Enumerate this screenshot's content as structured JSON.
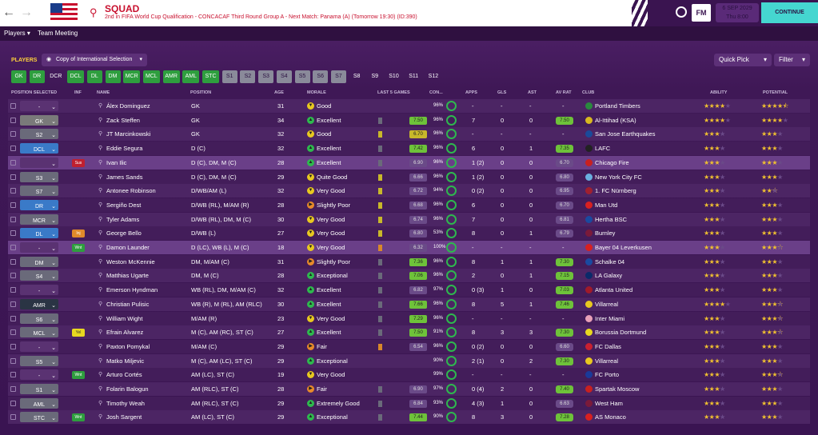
{
  "header": {
    "title": "SQUAD",
    "subtitle": "2nd in FIFA World Cup Qualification - CONCACAF Third Round Group A - Next Match: Panama (A) (Tomorrow 19:30) (ID:390)",
    "fm_label": "FM",
    "date": "6 SEP 2029",
    "time": "Thu 8:00",
    "continue": "CONTINUE"
  },
  "subnav": {
    "players": "Players",
    "team_meeting": "Team Meeting"
  },
  "toolbar": {
    "players_label": "PLAYERS",
    "view": "Copy of International Selection",
    "quick_pick": "Quick Pick",
    "filter": "Filter"
  },
  "position_tabs": [
    {
      "label": "GK",
      "style": "green"
    },
    {
      "label": "DR",
      "style": "green"
    },
    {
      "label": "DCR",
      "style": "plain"
    },
    {
      "label": "DCL",
      "style": "green"
    },
    {
      "label": "DL",
      "style": "green"
    },
    {
      "label": "DM",
      "style": "green"
    },
    {
      "label": "MCR",
      "style": "green"
    },
    {
      "label": "MCL",
      "style": "green"
    },
    {
      "label": "AMR",
      "style": "green"
    },
    {
      "label": "AML",
      "style": "green"
    },
    {
      "label": "STC",
      "style": "green"
    },
    {
      "label": "S1",
      "style": "grey"
    },
    {
      "label": "S2",
      "style": "grey"
    },
    {
      "label": "S3",
      "style": "grey"
    },
    {
      "label": "S4",
      "style": "grey"
    },
    {
      "label": "S5",
      "style": "grey"
    },
    {
      "label": "S6",
      "style": "grey"
    },
    {
      "label": "S7",
      "style": "grey"
    },
    {
      "label": "S8",
      "style": "plain"
    },
    {
      "label": "S9",
      "style": "plain"
    },
    {
      "label": "S10",
      "style": "plain"
    },
    {
      "label": "S11",
      "style": "plain"
    },
    {
      "label": "S12",
      "style": "plain"
    }
  ],
  "columns": {
    "position_selected": "POSITION SELECTED",
    "inf": "INF",
    "name": "NAME",
    "position": "POSITION",
    "age": "AGE",
    "morale": "MORALE",
    "last5": "LAST 5 GAMES",
    "con": "CON...",
    "apps": "APPS",
    "gls": "GLS",
    "ast": "AST",
    "avrat": "AV RAT",
    "club": "CLUB",
    "ability": "ABILITY",
    "potential": "POTENTIAL"
  },
  "players": [
    {
      "sel": "-",
      "selstyle": "empty",
      "inf": "",
      "name": "Álex Dominguez",
      "pos": "GK",
      "age": "31",
      "morale": "Good",
      "mstyle": "good",
      "games": [],
      "rating": "",
      "con": "96%",
      "apps": "-",
      "gls": "-",
      "ast": "-",
      "avrat": "-",
      "avstyle": "",
      "club": "Portland Timbers",
      "clubcolor": "#2a8a3e",
      "ability": 4,
      "potential": 4.5
    },
    {
      "sel": "GK",
      "selstyle": "gk",
      "inf": "",
      "name": "Zack Steffen",
      "pos": "GK",
      "age": "34",
      "morale": "Excellent",
      "mstyle": "exc",
      "games": [
        "g",
        "g",
        "g",
        "g",
        "g"
      ],
      "rating": "7.50",
      "rstyle": "g",
      "con": "96%",
      "apps": "7",
      "gls": "0",
      "ast": "0",
      "avrat": "7.50",
      "avstyle": "g",
      "club": "Al-Ittihad (KSA)",
      "clubcolor": "#d8b820",
      "ability": 4,
      "potential": 4
    },
    {
      "sel": "S2",
      "selstyle": "grey",
      "inf": "",
      "name": "JT Marcinkowski",
      "pos": "GK",
      "age": "32",
      "morale": "Good",
      "mstyle": "good",
      "games": [
        "y"
      ],
      "rating": "6.70",
      "rstyle": "y",
      "con": "96%",
      "apps": "-",
      "gls": "-",
      "ast": "-",
      "avrat": "-",
      "avstyle": "",
      "club": "San Jose Earthquakes",
      "clubcolor": "#1a4a9a",
      "ability": 3,
      "potential": 3
    },
    {
      "sel": "DCL",
      "selstyle": "blue",
      "inf": "",
      "name": "Eddie Segura",
      "pos": "D (C)",
      "age": "32",
      "morale": "Excellent",
      "mstyle": "exc",
      "games": [
        "g",
        "g",
        "g",
        "g",
        "g"
      ],
      "rating": "7.42",
      "rstyle": "g",
      "con": "96%",
      "apps": "6",
      "gls": "0",
      "ast": "1",
      "avrat": "7.35",
      "avstyle": "g",
      "club": "LAFC",
      "clubcolor": "#222",
      "ability": 3,
      "potential": 3
    },
    {
      "sel": "",
      "selstyle": "empty",
      "inf": "Sus",
      "infstyle": "sus",
      "name": "Ivan Ilic",
      "pos": "D (C), DM, M (C)",
      "age": "28",
      "morale": "Excellent",
      "mstyle": "exc",
      "games": [
        "g",
        "g",
        "g",
        "g",
        "g"
      ],
      "rating": "6.90",
      "rstyle": "p",
      "con": "96%",
      "apps": "1 (2)",
      "gls": "0",
      "ast": "0",
      "avrat": "6.70",
      "avstyle": "p",
      "club": "Chicago Fire",
      "clubcolor": "#c82020",
      "ability": 3,
      "potential": 3,
      "selected": true
    },
    {
      "sel": "S3",
      "selstyle": "grey",
      "inf": "",
      "name": "James Sands",
      "pos": "D (C), DM, M (C)",
      "age": "29",
      "morale": "Quite Good",
      "mstyle": "good",
      "games": [
        "y",
        "y",
        "y",
        "y",
        "y"
      ],
      "rating": "6.66",
      "rstyle": "p",
      "con": "96%",
      "apps": "1 (2)",
      "gls": "0",
      "ast": "0",
      "avrat": "6.80",
      "avstyle": "p",
      "club": "New York City FC",
      "clubcolor": "#6ab0e0",
      "ability": 3,
      "potential": 3
    },
    {
      "sel": "S7",
      "selstyle": "grey",
      "inf": "",
      "name": "Antonee Robinson",
      "pos": "D/WB/AM (L)",
      "age": "32",
      "morale": "Very Good",
      "mstyle": "good",
      "games": [
        "y",
        "y",
        "y",
        "y",
        "y"
      ],
      "rating": "6.72",
      "rstyle": "p",
      "con": "94%",
      "apps": "0 (2)",
      "gls": "0",
      "ast": "0",
      "avrat": "6.95",
      "avstyle": "p",
      "club": "1. FC Nürnberg",
      "clubcolor": "#a02030",
      "ability": 3,
      "potential": 2.5
    },
    {
      "sel": "DR",
      "selstyle": "blue",
      "inf": "",
      "name": "Sergiño Dest",
      "pos": "D/WB (RL), M/AM (R)",
      "age": "28",
      "morale": "Slightly Poor",
      "mstyle": "poor",
      "games": [
        "y",
        "y",
        "y",
        "y",
        "y"
      ],
      "rating": "6.68",
      "rstyle": "p",
      "con": "96%",
      "apps": "6",
      "gls": "0",
      "ast": "0",
      "avrat": "6.70",
      "avstyle": "p",
      "club": "Man Utd",
      "clubcolor": "#d82020",
      "ability": 3,
      "potential": 3
    },
    {
      "sel": "MCR",
      "selstyle": "grey",
      "inf": "",
      "name": "Tyler Adams",
      "pos": "D/WB (RL), DM, M (C)",
      "age": "30",
      "morale": "Very Good",
      "mstyle": "good",
      "games": [
        "y",
        "y",
        "y",
        "y",
        "y"
      ],
      "rating": "6.74",
      "rstyle": "p",
      "con": "96%",
      "apps": "7",
      "gls": "0",
      "ast": "0",
      "avrat": "6.81",
      "avstyle": "p",
      "club": "Hertha BSC",
      "clubcolor": "#1a4aa0",
      "ability": 3,
      "potential": 3
    },
    {
      "sel": "DL",
      "selstyle": "blue",
      "inf": "Inj",
      "infstyle": "inj",
      "name": "George Bello",
      "pos": "D/WB (L)",
      "age": "27",
      "morale": "Very Good",
      "mstyle": "good",
      "games": [
        "y",
        "y",
        "y",
        "y",
        "y"
      ],
      "rating": "6.80",
      "rstyle": "p",
      "con": "53%",
      "apps": "8",
      "gls": "0",
      "ast": "1",
      "avrat": "6.79",
      "avstyle": "p",
      "club": "Burnley",
      "clubcolor": "#7a1a3a",
      "ability": 3,
      "potential": 3
    },
    {
      "sel": "-",
      "selstyle": "empty",
      "inf": "Wnt",
      "infstyle": "wnt",
      "name": "Damon Launder",
      "pos": "D (LC), WB (L), M (C)",
      "age": "18",
      "morale": "Very Good",
      "mstyle": "good",
      "games": [
        "o"
      ],
      "rating": "6.32",
      "rstyle": "p",
      "con": "100%",
      "apps": "-",
      "gls": "-",
      "ast": "-",
      "avrat": "-",
      "avstyle": "",
      "club": "Bayer 04 Leverkusen",
      "clubcolor": "#d82020",
      "ability": 3,
      "potential": 3.5,
      "selected": true
    },
    {
      "sel": "DM",
      "selstyle": "grey",
      "inf": "",
      "name": "Weston McKennie",
      "pos": "DM, M/AM (C)",
      "age": "31",
      "morale": "Slightly Poor",
      "mstyle": "poor",
      "games": [
        "g",
        "g",
        "g",
        "g",
        "g"
      ],
      "rating": "7.36",
      "rstyle": "g",
      "con": "96%",
      "apps": "8",
      "gls": "1",
      "ast": "1",
      "avrat": "7.30",
      "avstyle": "g",
      "club": "Schalke 04",
      "clubcolor": "#1a4aa0",
      "ability": 3,
      "potential": 3
    },
    {
      "sel": "S4",
      "selstyle": "grey",
      "inf": "",
      "name": "Matthias Ugarte",
      "pos": "DM, M (C)",
      "age": "28",
      "morale": "Exceptional",
      "mstyle": "exc",
      "games": [
        "g",
        "g",
        "g",
        "g",
        "g"
      ],
      "rating": "7.06",
      "rstyle": "g",
      "con": "96%",
      "apps": "2",
      "gls": "0",
      "ast": "1",
      "avrat": "7.15",
      "avstyle": "g",
      "club": "LA Galaxy",
      "clubcolor": "#0a2a6a",
      "ability": 3,
      "potential": 3
    },
    {
      "sel": "-",
      "selstyle": "empty",
      "inf": "",
      "name": "Emerson Hyndman",
      "pos": "WB (RL), DM, M/AM (C)",
      "age": "32",
      "morale": "Excellent",
      "mstyle": "exc",
      "games": [
        "g",
        "g",
        "g",
        "g",
        "g"
      ],
      "rating": "6.82",
      "rstyle": "p",
      "con": "97%",
      "apps": "0 (3)",
      "gls": "1",
      "ast": "0",
      "avrat": "7.03",
      "avstyle": "g",
      "club": "Atlanta United",
      "clubcolor": "#a01a2a",
      "ability": 3,
      "potential": 3
    },
    {
      "sel": "AMR",
      "selstyle": "dark",
      "inf": "",
      "name": "Christian Pulisic",
      "pos": "WB (R), M (RL), AM (RLC)",
      "age": "30",
      "morale": "Excellent",
      "mstyle": "exc",
      "games": [
        "g",
        "g",
        "g",
        "g",
        "g"
      ],
      "rating": "7.66",
      "rstyle": "g",
      "con": "96%",
      "apps": "8",
      "gls": "5",
      "ast": "1",
      "avrat": "7.46",
      "avstyle": "g",
      "club": "Villarreal",
      "clubcolor": "#e8c820",
      "ability": 4,
      "potential": 3.5
    },
    {
      "sel": "S6",
      "selstyle": "grey",
      "inf": "",
      "name": "William Wight",
      "pos": "M/AM (R)",
      "age": "23",
      "morale": "Very Good",
      "mstyle": "good",
      "games": [
        "g",
        "g",
        "g",
        "g",
        "g"
      ],
      "rating": "7.29",
      "rstyle": "g",
      "con": "96%",
      "apps": "-",
      "gls": "-",
      "ast": "-",
      "avrat": "-",
      "avstyle": "",
      "club": "Inter Miami",
      "clubcolor": "#e8a0b8",
      "ability": 3,
      "potential": 3.5
    },
    {
      "sel": "MCL",
      "selstyle": "grey",
      "inf": "Yel",
      "infstyle": "yel",
      "name": "Efrain Alvarez",
      "pos": "M (C), AM (RC), ST (C)",
      "age": "27",
      "morale": "Excellent",
      "mstyle": "exc",
      "games": [
        "g",
        "g",
        "g",
        "g",
        "g"
      ],
      "rating": "7.50",
      "rstyle": "g",
      "con": "91%",
      "apps": "8",
      "gls": "3",
      "ast": "3",
      "avrat": "7.30",
      "avstyle": "g",
      "club": "Borussia Dortmund",
      "clubcolor": "#e8d820",
      "ability": 3,
      "potential": 3.5
    },
    {
      "sel": "-",
      "selstyle": "empty",
      "inf": "",
      "name": "Paxton Pomykal",
      "pos": "M/AM (C)",
      "age": "29",
      "morale": "Fair",
      "mstyle": "poor",
      "games": [
        "o",
        "o",
        "o",
        "o",
        "o"
      ],
      "rating": "6.54",
      "rstyle": "p",
      "con": "96%",
      "apps": "0 (2)",
      "gls": "0",
      "ast": "0",
      "avrat": "6.60",
      "avstyle": "p",
      "club": "FC Dallas",
      "clubcolor": "#c82030",
      "ability": 3,
      "potential": 3
    },
    {
      "sel": "S5",
      "selstyle": "grey",
      "inf": "",
      "name": "Matko Miljevic",
      "pos": "M (C), AM (LC), ST (C)",
      "age": "29",
      "morale": "Exceptional",
      "mstyle": "exc",
      "games": [],
      "rating": "",
      "con": "90%",
      "apps": "2 (1)",
      "gls": "0",
      "ast": "2",
      "avrat": "7.30",
      "avstyle": "g",
      "club": "Villarreal",
      "clubcolor": "#e8c820",
      "ability": 3,
      "potential": 3
    },
    {
      "sel": "-",
      "selstyle": "empty",
      "inf": "Wnt",
      "infstyle": "wnt",
      "name": "Arturo Cortés",
      "pos": "AM (LC), ST (C)",
      "age": "19",
      "morale": "Very Good",
      "mstyle": "good",
      "games": [],
      "rating": "",
      "con": "99%",
      "apps": "-",
      "gls": "-",
      "ast": "-",
      "avrat": "-",
      "avstyle": "",
      "club": "FC Porto",
      "clubcolor": "#1a3a9a",
      "ability": 3,
      "potential": 3.5
    },
    {
      "sel": "S1",
      "selstyle": "grey",
      "inf": "",
      "name": "Folarin Balogun",
      "pos": "AM (RLC), ST (C)",
      "age": "28",
      "morale": "Fair",
      "mstyle": "poor",
      "games": [
        "g",
        "g",
        "g",
        "g",
        "g"
      ],
      "rating": "6.90",
      "rstyle": "p",
      "con": "97%",
      "apps": "0 (4)",
      "gls": "2",
      "ast": "0",
      "avrat": "7.40",
      "avstyle": "g",
      "club": "Spartak Moscow",
      "clubcolor": "#c82020",
      "ability": 3,
      "potential": 3
    },
    {
      "sel": "AML",
      "selstyle": "grey",
      "inf": "",
      "name": "Timothy Weah",
      "pos": "AM (RLC), ST (C)",
      "age": "29",
      "morale": "Extremely Good",
      "mstyle": "exc",
      "games": [
        "g",
        "g",
        "g",
        "g",
        "g"
      ],
      "rating": "6.84",
      "rstyle": "p",
      "con": "93%",
      "apps": "4 (3)",
      "gls": "1",
      "ast": "0",
      "avrat": "6.63",
      "avstyle": "p",
      "club": "West Ham",
      "clubcolor": "#7a1a3a",
      "ability": 3,
      "potential": 3
    },
    {
      "sel": "STC",
      "selstyle": "grey",
      "inf": "Wnt",
      "infstyle": "wnt",
      "name": "Josh Sargent",
      "pos": "AM (LC), ST (C)",
      "age": "29",
      "morale": "Exceptional",
      "mstyle": "exc",
      "games": [
        "g",
        "g",
        "g",
        "g",
        "g"
      ],
      "rating": "7.44",
      "rstyle": "g",
      "con": "90%",
      "apps": "8",
      "gls": "3",
      "ast": "0",
      "avrat": "7.28",
      "avstyle": "g",
      "club": "AS Monaco",
      "clubcolor": "#d82020",
      "ability": 3,
      "potential": 3
    }
  ]
}
